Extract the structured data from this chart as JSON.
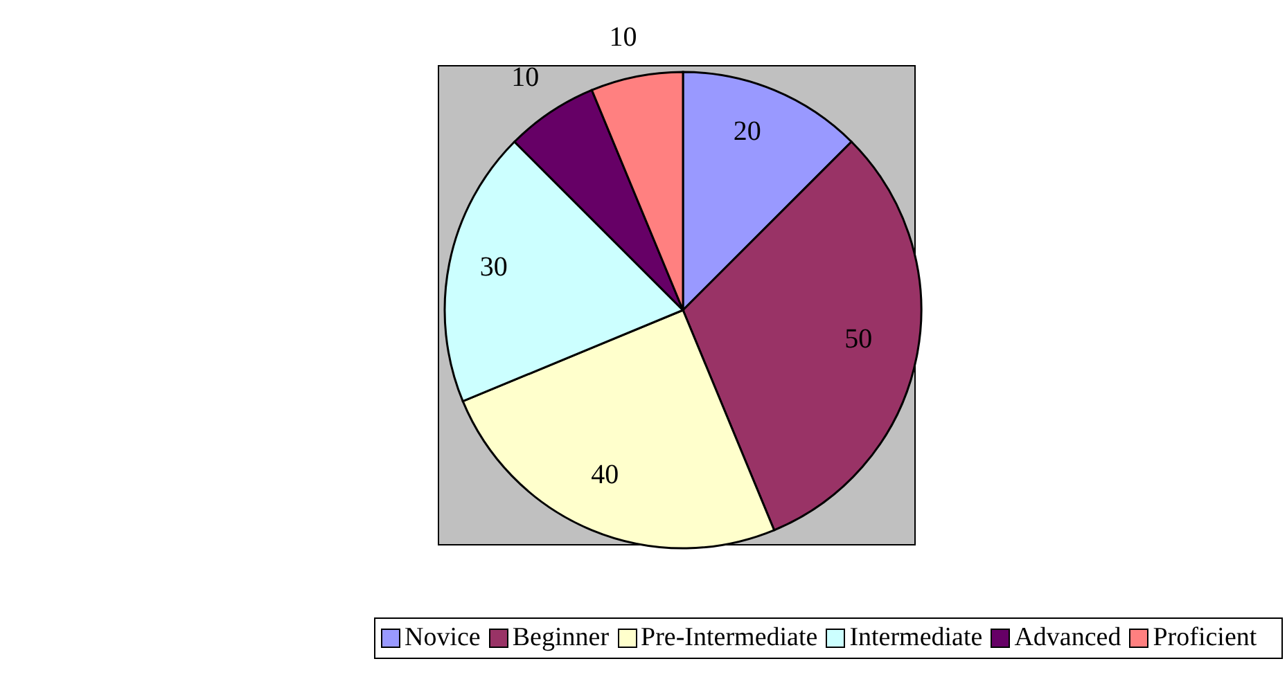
{
  "chart_data": {
    "type": "pie",
    "categories": [
      "Novice",
      "Beginner",
      "Pre-Intermediate",
      "Intermediate",
      "Advanced",
      "Proficient"
    ],
    "values": [
      20,
      50,
      40,
      30,
      10,
      10
    ],
    "colors": [
      "#9999ff",
      "#993366",
      "#ffffcc",
      "#ccffff",
      "#660066",
      "#ff8080"
    ],
    "data_labels": true,
    "legend": "bottom"
  }
}
